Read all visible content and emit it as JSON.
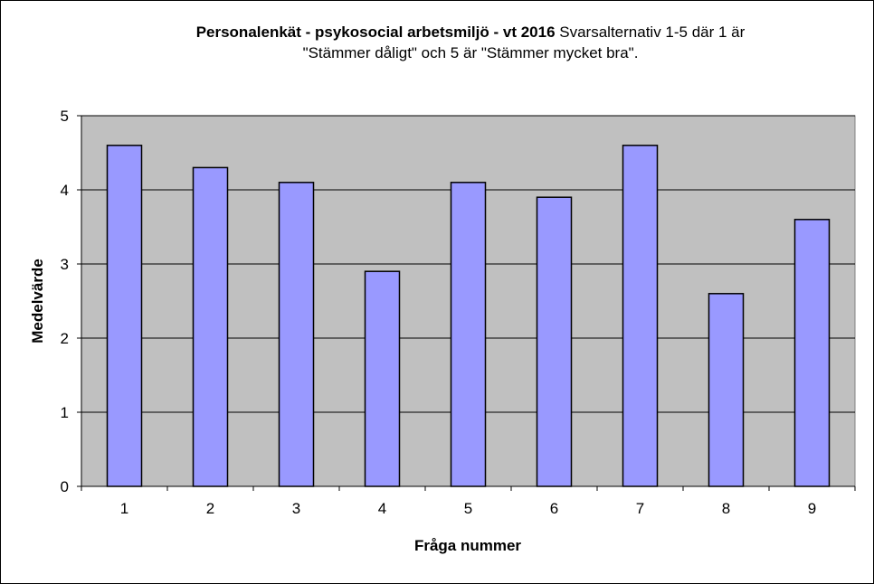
{
  "chart_data": {
    "type": "bar",
    "title_bold": "Personalenkät - psykosocial arbetsmiljö - vt 2016",
    "title_rest": " Svarsalternativ 1-5 där 1 är",
    "title_line2": "\"Stämmer dåligt\" och 5 är \"Stämmer mycket bra\".",
    "xlabel": "Fråga nummer",
    "ylabel": "Medelvärde",
    "categories": [
      "1",
      "2",
      "3",
      "4",
      "5",
      "6",
      "7",
      "8",
      "9"
    ],
    "values": [
      4.6,
      4.3,
      4.1,
      2.9,
      4.1,
      3.9,
      4.6,
      2.6,
      3.6
    ],
    "yticks": [
      "0",
      "1",
      "2",
      "3",
      "4",
      "5"
    ],
    "ylim": [
      0,
      5
    ],
    "grid": true,
    "legend": "none",
    "colors": {
      "bar_fill": "#9999ff",
      "plot_background": "#c0c0c0",
      "gridline": "#000000"
    }
  }
}
